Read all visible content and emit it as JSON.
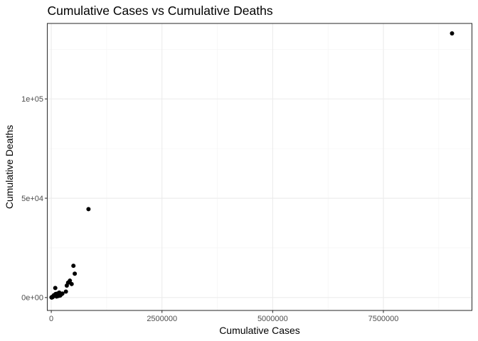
{
  "chart_data": {
    "type": "scatter",
    "title": "Cumulative Cases vs Cumulative Deaths",
    "xlabel": "Cumulative Cases",
    "ylabel": "Cumulative Deaths",
    "xlim": [
      -90000,
      9500000
    ],
    "ylim": [
      -6500,
      138000
    ],
    "x_ticks": [
      0,
      2500000,
      5000000,
      7500000
    ],
    "x_tick_labels": [
      "0",
      "2500000",
      "5000000",
      "7500000"
    ],
    "y_ticks": [
      0,
      50000,
      100000
    ],
    "y_tick_labels": [
      "0e+00",
      "5e+04",
      "1e+05"
    ],
    "grid": true,
    "legend": "none",
    "point_color": "#000000",
    "points": [
      {
        "x": 9050000,
        "y": 133000
      },
      {
        "x": 840000,
        "y": 44500
      },
      {
        "x": 500000,
        "y": 16000
      },
      {
        "x": 530000,
        "y": 12000
      },
      {
        "x": 420000,
        "y": 8500
      },
      {
        "x": 380000,
        "y": 7500
      },
      {
        "x": 460000,
        "y": 6800
      },
      {
        "x": 350000,
        "y": 6000
      },
      {
        "x": 90000,
        "y": 4800
      },
      {
        "x": 330000,
        "y": 3000
      },
      {
        "x": 250000,
        "y": 2000
      },
      {
        "x": 180000,
        "y": 2500
      },
      {
        "x": 140000,
        "y": 2000
      },
      {
        "x": 100000,
        "y": 1800
      },
      {
        "x": 60000,
        "y": 1200
      },
      {
        "x": 220000,
        "y": 1500
      },
      {
        "x": 160000,
        "y": 800
      },
      {
        "x": 120000,
        "y": 500
      },
      {
        "x": 80000,
        "y": 900
      },
      {
        "x": 40000,
        "y": 600
      },
      {
        "x": 20000,
        "y": 300
      },
      {
        "x": 5000,
        "y": 100
      },
      {
        "x": 30000,
        "y": 200
      },
      {
        "x": 200000,
        "y": 1000
      },
      {
        "x": 10000,
        "y": 0
      }
    ]
  }
}
